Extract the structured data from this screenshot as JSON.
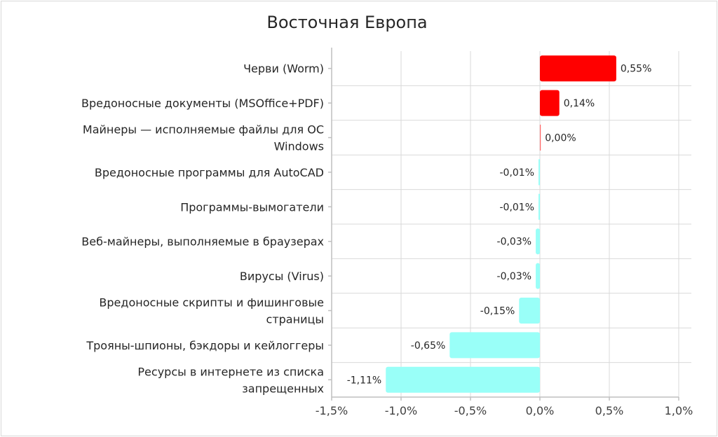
{
  "chart_data": {
    "type": "bar",
    "orientation": "horizontal",
    "title": "Восточная Европа",
    "categories": [
      [
        "Черви (Worm)"
      ],
      [
        "Вредоносные документы (MSOffice+PDF)"
      ],
      [
        "Майнеры — исполняемые файлы для ОС",
        "Windows"
      ],
      [
        "Вредоносные программы для AutoCAD"
      ],
      [
        "Программы-вымогатели"
      ],
      [
        "Веб-майнеры, выполняемые в браузерах"
      ],
      [
        "Вирусы (Virus)"
      ],
      [
        "Вредоносные скрипты и фишинговые",
        "страницы"
      ],
      [
        "Трояны-шпионы, бэкдоры и кейлоггеры"
      ],
      [
        "Ресурсы в интернете из списка",
        "запрещенных"
      ]
    ],
    "values": [
      0.55,
      0.14,
      0.0,
      -0.01,
      -0.01,
      -0.03,
      -0.03,
      -0.15,
      -0.65,
      -1.11
    ],
    "data_labels": [
      "0,55%",
      "0,14%",
      "0,00%",
      "-0,01%",
      "-0,01%",
      "-0,03%",
      "-0,03%",
      "-0,15%",
      "-0,65%",
      "-1,11%"
    ],
    "xlim": [
      -1.5,
      1.0
    ],
    "xticks": [
      -1.5,
      -1.0,
      -0.5,
      0.0,
      0.5,
      1.0
    ],
    "xtick_labels": [
      "-1,5%",
      "-1,0%",
      "-0,5%",
      "0,0%",
      "0,5%",
      "1,0%"
    ],
    "xlabel": "",
    "ylabel": "",
    "grid": true,
    "colors": {
      "positive": "#ff0000",
      "negative": "#99fff8"
    }
  }
}
